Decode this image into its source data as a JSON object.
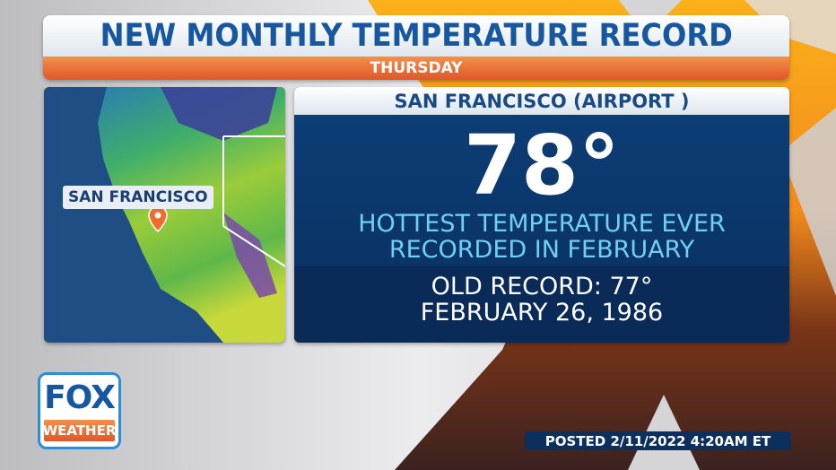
{
  "header": {
    "title": "NEW MONTHLY TEMPERATURE RECORD",
    "subtitle": "THURSDAY"
  },
  "map": {
    "label": "SAN FRANCISCO",
    "marker_icon": "map-pin-icon",
    "pin_color": "#f06a2a"
  },
  "record": {
    "location": "SAN FRANCISCO (AIRPORT )",
    "temperature": "78°",
    "description_line1": "HOTTEST TEMPERATURE EVER",
    "description_line2": "RECORDED IN FEBRUARY",
    "old_record_line1": "OLD RECORD: 77°",
    "old_record_line2": "FEBRUARY 26, 1986"
  },
  "logo": {
    "top": "FOX",
    "bottom": "WEATHER"
  },
  "footer": {
    "posted": "POSTED 2/11/2022 4:20AM ET"
  },
  "colors": {
    "brand_blue": "#1657a0",
    "accent_orange": "#e0562a",
    "panel_navy": "#0c3f78",
    "highlight_cyan": "#6fd0f4"
  }
}
